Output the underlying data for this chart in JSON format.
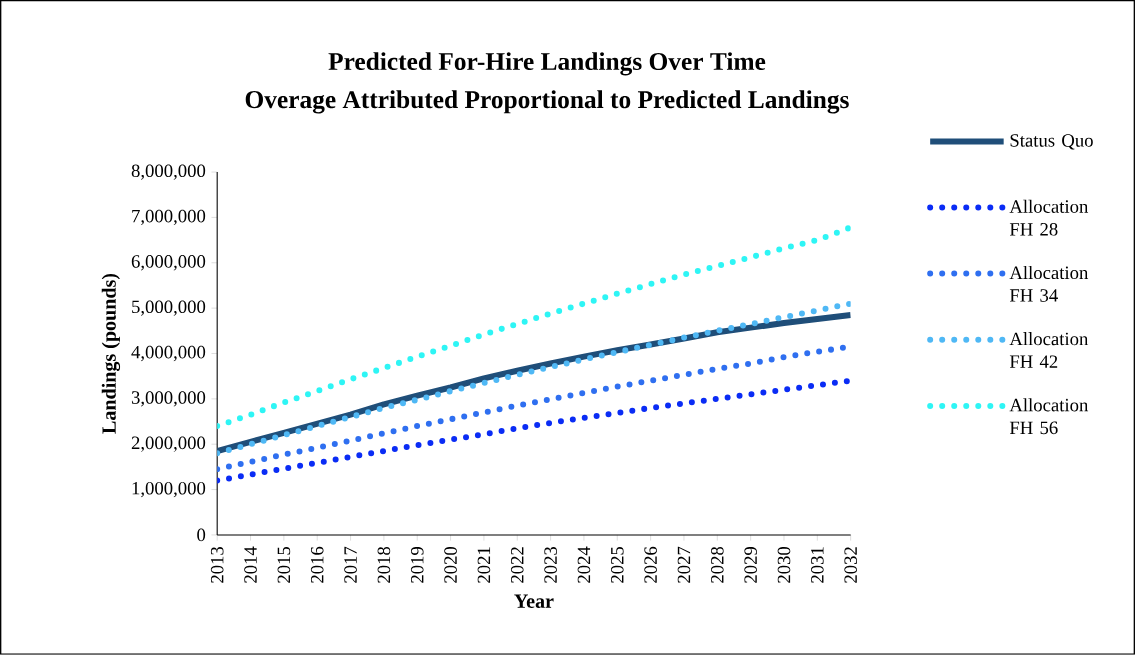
{
  "chart_data": {
    "type": "line",
    "title": "Predicted For-Hire Landings Over Time",
    "subtitle": "Overage Attributed Proportional to Predicted Landings",
    "xlabel": "Year",
    "ylabel": "Landings (pounds)",
    "categories": [
      "2013",
      "2014",
      "2015",
      "2016",
      "2017",
      "2018",
      "2019",
      "2020",
      "2021",
      "2022",
      "2023",
      "2024",
      "2025",
      "2026",
      "2027",
      "2028",
      "2029",
      "2030",
      "2031",
      "2032"
    ],
    "ylim": [
      0,
      8000000
    ],
    "yticks": [
      0,
      {
        "value": 1000000,
        "label": "1,000,000"
      },
      {
        "value": 2000000,
        "label": "2,000,000"
      },
      {
        "value": 3000000,
        "label": "3,000,000"
      },
      {
        "value": 4000000,
        "label": "4,000,000"
      },
      {
        "value": 5000000,
        "label": "5,000,000"
      },
      {
        "value": 6000000,
        "label": "6,000,000"
      },
      {
        "value": 7000000,
        "label": "7,000,000"
      },
      {
        "value": 8000000,
        "label": "8,000,000"
      }
    ],
    "legend": "right",
    "series": [
      {
        "name": "Status Quo",
        "color": "#1f4e79",
        "line_style": "solid",
        "values": [
          1850000,
          2050000,
          2250000,
          2450000,
          2650000,
          2880000,
          3070000,
          3250000,
          3450000,
          3620000,
          3780000,
          3930000,
          4070000,
          4200000,
          4330000,
          4470000,
          4570000,
          4670000,
          4760000,
          4850000
        ]
      },
      {
        "name": "Allocation FH 28",
        "color": "#0a2cf5",
        "line_style": "dotted",
        "values": [
          1200000,
          1330000,
          1460000,
          1590000,
          1720000,
          1850000,
          1980000,
          2100000,
          2220000,
          2350000,
          2470000,
          2580000,
          2690000,
          2800000,
          2900000,
          3000000,
          3100000,
          3200000,
          3300000,
          3400000
        ]
      },
      {
        "name": "Allocation FH 34",
        "color": "#2f6ff0",
        "line_style": "dotted",
        "values": [
          1450000,
          1610000,
          1770000,
          1920000,
          2080000,
          2240000,
          2400000,
          2550000,
          2700000,
          2850000,
          2990000,
          3130000,
          3270000,
          3400000,
          3530000,
          3660000,
          3780000,
          3920000,
          4040000,
          4150000
        ]
      },
      {
        "name": "Allocation FH 42",
        "color": "#4fb8f5",
        "line_style": "dotted",
        "values": [
          1800000,
          2000000,
          2200000,
          2400000,
          2600000,
          2800000,
          2980000,
          3170000,
          3350000,
          3530000,
          3700000,
          3870000,
          4030000,
          4190000,
          4350000,
          4500000,
          4650000,
          4800000,
          4950000,
          5100000
        ]
      },
      {
        "name": "Allocation FH 56",
        "color": "#2ef5f5",
        "line_style": "dotted",
        "values": [
          2400000,
          2650000,
          2920000,
          3170000,
          3430000,
          3680000,
          3930000,
          4170000,
          4420000,
          4650000,
          4880000,
          5100000,
          5320000,
          5530000,
          5740000,
          5930000,
          6120000,
          6320000,
          6500000,
          6780000
        ]
      }
    ]
  }
}
